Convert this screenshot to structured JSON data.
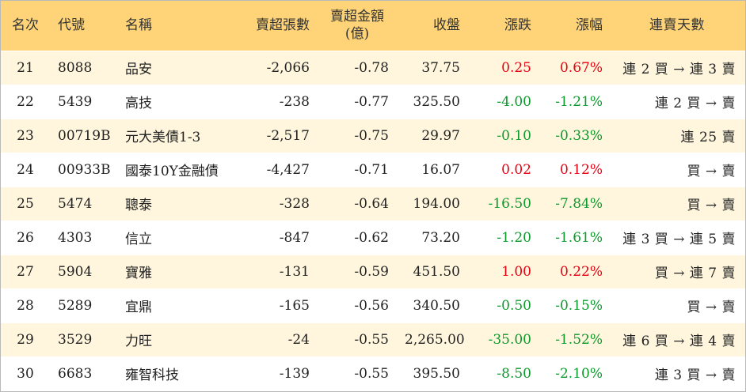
{
  "table": {
    "headers": {
      "rank": "名次",
      "code": "代號",
      "name": "名稱",
      "net_sell_lots": "賣超張數",
      "net_sell_amount_line1": "賣超金額",
      "net_sell_amount_line2": "(億)",
      "close": "收盤",
      "change": "漲跌",
      "change_pct": "漲幅",
      "streak": "連賣天數"
    },
    "rows": [
      {
        "rank": "21",
        "code": "8088",
        "name": "品安",
        "net_sell_lots": "-2,066",
        "net_sell_amount": "-0.78",
        "close": "37.75",
        "change": "0.25",
        "change_pct": "0.67%",
        "streak": "連 2 買 → 連 3 賣",
        "direction": "up"
      },
      {
        "rank": "22",
        "code": "5439",
        "name": "高技",
        "net_sell_lots": "-238",
        "net_sell_amount": "-0.77",
        "close": "325.50",
        "change": "-4.00",
        "change_pct": "-1.21%",
        "streak": "連 2 買 → 賣",
        "direction": "down"
      },
      {
        "rank": "23",
        "code": "00719B",
        "name": "元大美債1-3",
        "net_sell_lots": "-2,517",
        "net_sell_amount": "-0.75",
        "close": "29.97",
        "change": "-0.10",
        "change_pct": "-0.33%",
        "streak": "連 25 賣",
        "direction": "down"
      },
      {
        "rank": "24",
        "code": "00933B",
        "name": "國泰10Y金融債",
        "net_sell_lots": "-4,427",
        "net_sell_amount": "-0.71",
        "close": "16.07",
        "change": "0.02",
        "change_pct": "0.12%",
        "streak": "買 → 賣",
        "direction": "up"
      },
      {
        "rank": "25",
        "code": "5474",
        "name": "聰泰",
        "net_sell_lots": "-328",
        "net_sell_amount": "-0.64",
        "close": "194.00",
        "change": "-16.50",
        "change_pct": "-7.84%",
        "streak": "買 → 賣",
        "direction": "down"
      },
      {
        "rank": "26",
        "code": "4303",
        "name": "信立",
        "net_sell_lots": "-847",
        "net_sell_amount": "-0.62",
        "close": "73.20",
        "change": "-1.20",
        "change_pct": "-1.61%",
        "streak": "連 3 買 → 連 5 賣",
        "direction": "down"
      },
      {
        "rank": "27",
        "code": "5904",
        "name": "寶雅",
        "net_sell_lots": "-131",
        "net_sell_amount": "-0.59",
        "close": "451.50",
        "change": "1.00",
        "change_pct": "0.22%",
        "streak": "買 → 連 7 賣",
        "direction": "up"
      },
      {
        "rank": "28",
        "code": "5289",
        "name": "宜鼎",
        "net_sell_lots": "-165",
        "net_sell_amount": "-0.56",
        "close": "340.50",
        "change": "-0.50",
        "change_pct": "-0.15%",
        "streak": "買 → 賣",
        "direction": "down"
      },
      {
        "rank": "29",
        "code": "3529",
        "name": "力旺",
        "net_sell_lots": "-24",
        "net_sell_amount": "-0.55",
        "close": "2,265.00",
        "change": "-35.00",
        "change_pct": "-1.52%",
        "streak": "連 6 買 → 連 4 賣",
        "direction": "down"
      },
      {
        "rank": "30",
        "code": "6683",
        "name": "雍智科技",
        "net_sell_lots": "-139",
        "net_sell_amount": "-0.55",
        "close": "395.50",
        "change": "-8.50",
        "change_pct": "-2.10%",
        "streak": "連 3 買 → 賣",
        "direction": "down"
      }
    ]
  },
  "colors": {
    "header_bg": "#ffd478",
    "stripe_bg": "#fff6dd",
    "up": "#e60012",
    "down": "#0b9a2b"
  }
}
